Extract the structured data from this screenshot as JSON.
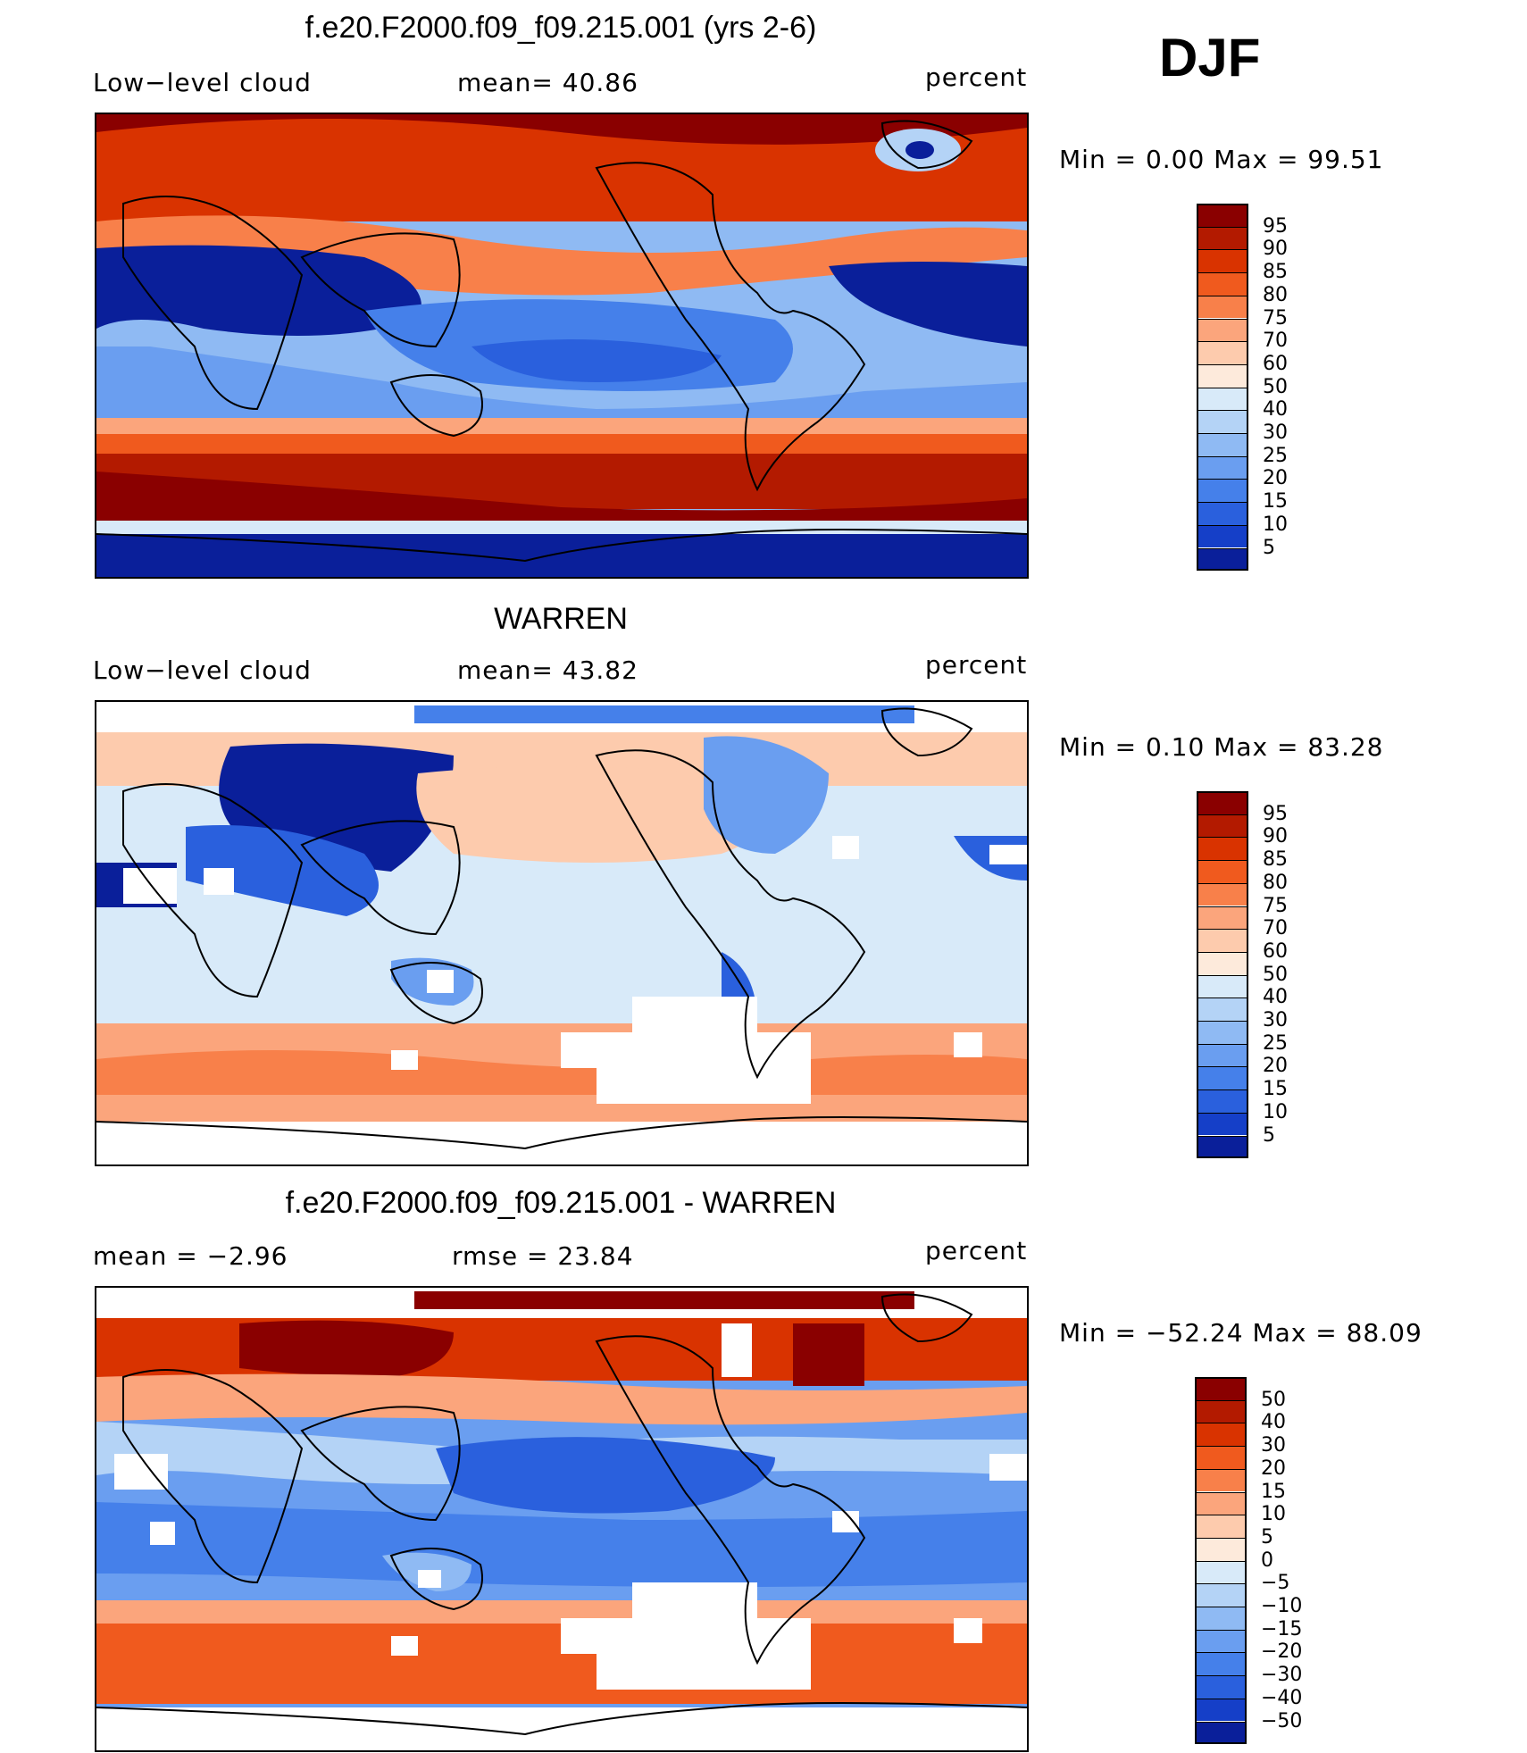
{
  "season": "DJF",
  "panels": [
    {
      "title": "f.e20.F2000.f09_f09.215.001 (yrs 2-6)",
      "left_label": "Low−level cloud",
      "mid_label": "mean=   40.86",
      "units": "percent",
      "minmax": "Min  =     0.00  Max  =    99.51",
      "colorbar": {
        "colors": [
          "#8a0000",
          "#b31a00",
          "#d93300",
          "#f05a1e",
          "#f8804a",
          "#fba57c",
          "#fdcbad",
          "#fdeadb",
          "#d8eaf9",
          "#b4d3f6",
          "#8fbaf3",
          "#6a9ef0",
          "#4580ea",
          "#2a60dd",
          "#153fc8",
          "#0a1f9a"
        ],
        "labels": [
          "95",
          "90",
          "85",
          "80",
          "75",
          "70",
          "60",
          "50",
          "40",
          "30",
          "25",
          "20",
          "15",
          "10",
          "5"
        ]
      }
    },
    {
      "title": "WARREN",
      "left_label": "Low−level cloud",
      "mid_label": "mean=   43.82",
      "units": "percent",
      "minmax": "Min  =     0.10  Max  =    83.28",
      "colorbar": {
        "colors": [
          "#8a0000",
          "#b31a00",
          "#d93300",
          "#f05a1e",
          "#f8804a",
          "#fba57c",
          "#fdcbad",
          "#fdeadb",
          "#d8eaf9",
          "#b4d3f6",
          "#8fbaf3",
          "#6a9ef0",
          "#4580ea",
          "#2a60dd",
          "#153fc8",
          "#0a1f9a"
        ],
        "labels": [
          "95",
          "90",
          "85",
          "80",
          "75",
          "70",
          "60",
          "50",
          "40",
          "30",
          "25",
          "20",
          "15",
          "10",
          "5"
        ]
      }
    },
    {
      "title": "f.e20.F2000.f09_f09.215.001 - WARREN",
      "left_label": "mean  =    −2.96",
      "mid_label": "rmse  =    23.84",
      "units": "percent",
      "minmax": "Min  = −52.24  Max  =    88.09",
      "colorbar": {
        "colors": [
          "#8a0000",
          "#b31a00",
          "#d93300",
          "#f05a1e",
          "#f8804a",
          "#fba57c",
          "#fdcbad",
          "#fdeadb",
          "#d8eaf9",
          "#b4d3f6",
          "#8fbaf3",
          "#6a9ef0",
          "#4580ea",
          "#2a60dd",
          "#153fc8",
          "#0a1f9a"
        ],
        "labels": [
          "50",
          "40",
          "30",
          "20",
          "15",
          "10",
          "5",
          "0",
          "−5",
          "−10",
          "−15",
          "−20",
          "−30",
          "−40",
          "−50"
        ]
      }
    }
  ]
}
